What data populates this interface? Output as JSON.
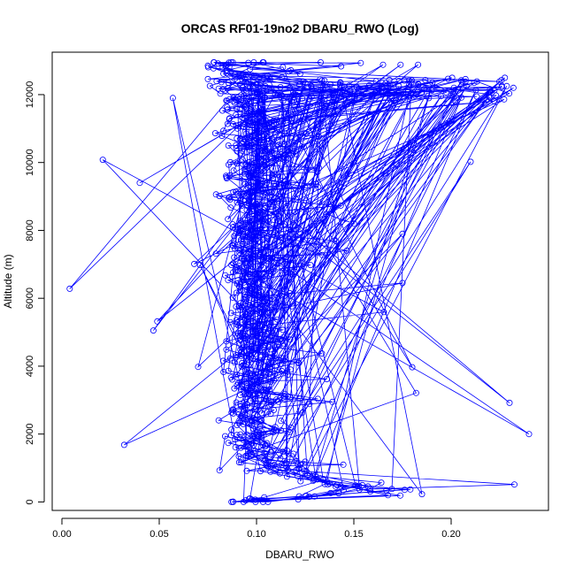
{
  "chart_data": {
    "type": "scatter",
    "title": "ORCAS RF01-19no2 DBARU_RWO (Log)",
    "xlabel": "DBARU_RWO",
    "ylabel": "Altitude (m)",
    "xlim": [
      -0.005,
      0.25
    ],
    "ylim": [
      -250,
      13250
    ],
    "x_ticks": [
      "0.00",
      "0.05",
      "0.10",
      "0.15",
      "0.20"
    ],
    "x_tick_values": [
      0.0,
      0.05,
      0.1,
      0.15,
      0.2
    ],
    "y_ticks": [
      "0",
      "2000",
      "4000",
      "6000",
      "8000",
      "10000",
      "12000"
    ],
    "y_tick_values": [
      0,
      2000,
      4000,
      6000,
      8000,
      10000,
      12000
    ],
    "marker": "open-circle",
    "connected": true,
    "color": "#0000ff",
    "grid": false,
    "series": [
      {
        "profile": [
          [
            0.095,
            0
          ],
          [
            0.11,
            150
          ],
          [
            0.14,
            250
          ],
          [
            0.16,
            400
          ],
          [
            0.13,
            600
          ],
          [
            0.11,
            900
          ],
          [
            0.1,
            1300
          ],
          [
            0.095,
            1800
          ],
          [
            0.092,
            2400
          ],
          [
            0.095,
            3000
          ],
          [
            0.093,
            3600
          ],
          [
            0.096,
            4200
          ],
          [
            0.094,
            4800
          ],
          [
            0.095,
            5400
          ],
          [
            0.097,
            6000
          ],
          [
            0.093,
            6600
          ],
          [
            0.095,
            7200
          ],
          [
            0.094,
            7800
          ],
          [
            0.096,
            8400
          ],
          [
            0.095,
            9000
          ],
          [
            0.093,
            9600
          ],
          [
            0.095,
            10200
          ],
          [
            0.094,
            10800
          ],
          [
            0.092,
            11400
          ],
          [
            0.09,
            12000
          ],
          [
            0.085,
            12400
          ],
          [
            0.082,
            12850
          ]
        ],
        "outliers": [
          [
            0.004,
            6280
          ],
          [
            0.021,
            10080
          ],
          [
            0.04,
            9400
          ],
          [
            0.032,
            1680
          ],
          [
            0.049,
            5320
          ],
          [
            0.047,
            5050
          ],
          [
            0.057,
            11900
          ],
          [
            0.071,
            6980
          ],
          [
            0.068,
            7010
          ],
          [
            0.07,
            3980
          ],
          [
            0.081,
            930
          ],
          [
            0.24,
            2000
          ],
          [
            0.23,
            2920
          ],
          [
            0.182,
            3210
          ],
          [
            0.18,
            3970
          ],
          [
            0.175,
            7900
          ],
          [
            0.175,
            6450
          ],
          [
            0.21,
            10020
          ],
          [
            0.232,
            12200
          ],
          [
            0.22,
            12150
          ],
          [
            0.185,
            230
          ],
          [
            0.183,
            12880
          ],
          [
            0.174,
            12880
          ],
          [
            0.165,
            12880
          ]
        ]
      }
    ]
  }
}
